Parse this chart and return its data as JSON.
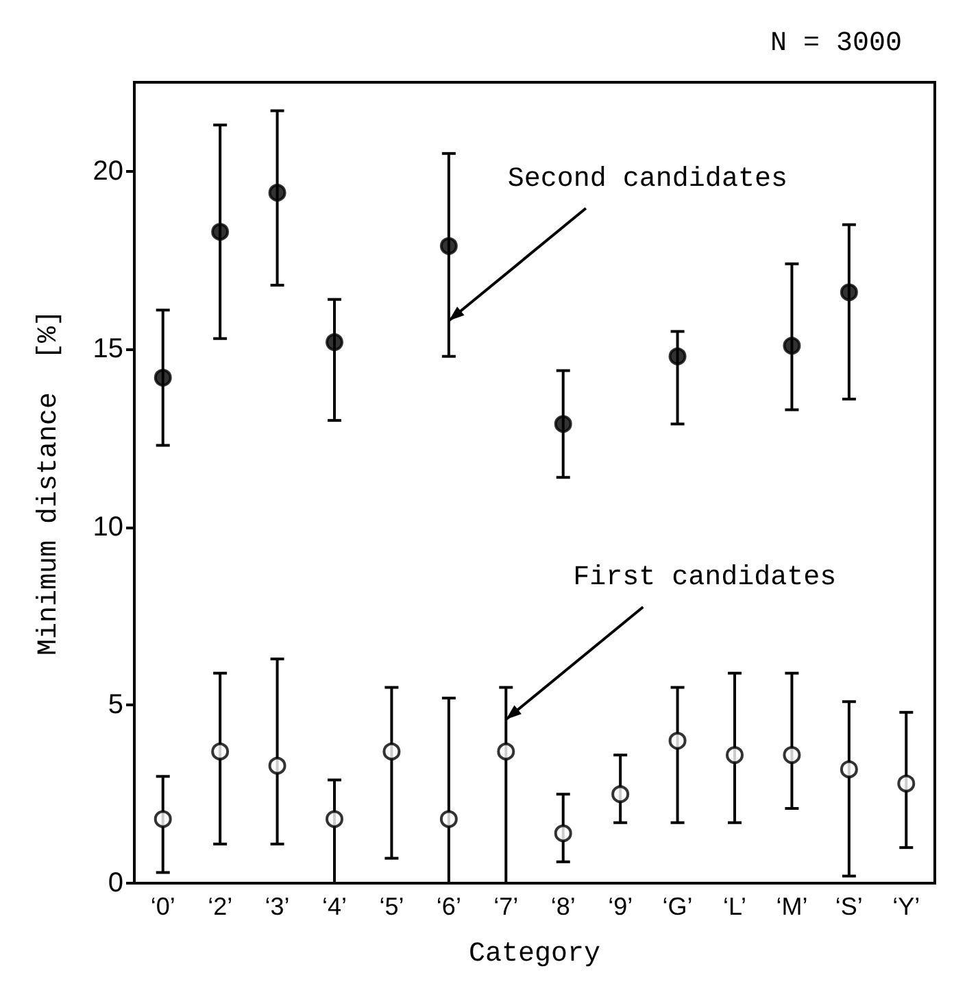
{
  "chart_data": {
    "type": "scatter",
    "xlabel": "Category",
    "ylabel": "Minimum distance  [%]",
    "categories": [
      "‘0’",
      "‘2’",
      "‘3’",
      "‘4’",
      "‘5’",
      "‘6’",
      "‘7’",
      "‘8’",
      "‘9’",
      "‘G’",
      "‘L’",
      "‘M’",
      "‘S’",
      "‘Y’"
    ],
    "ylim": [
      0,
      22.5
    ],
    "yticks": [
      0,
      5,
      10,
      15,
      20
    ],
    "grid": false,
    "marker": "circle",
    "series": [
      {
        "color": "#000000",
        "values": [
          14.2,
          18.3,
          19.4,
          15.2,
          null,
          17.9,
          null,
          12.9,
          null,
          14.8,
          null,
          15.1,
          16.6,
          null
        ],
        "errors": [
          [
            12.3,
            16.1
          ],
          [
            15.3,
            21.3
          ],
          [
            16.8,
            21.7
          ],
          [
            13.0,
            16.4
          ],
          null,
          [
            14.8,
            20.5
          ],
          null,
          [
            11.4,
            14.4
          ],
          null,
          [
            12.9,
            15.5
          ],
          null,
          [
            13.3,
            17.4
          ],
          [
            13.6,
            18.5
          ],
          null
        ]
      },
      {
        "color": "#000000",
        "values": [
          1.8,
          3.7,
          3.3,
          1.8,
          3.7,
          1.8,
          3.7,
          1.4,
          2.5,
          4.0,
          3.6,
          3.6,
          3.2,
          2.8
        ],
        "errors": [
          [
            0.3,
            3.0
          ],
          [
            1.1,
            5.9
          ],
          [
            1.1,
            6.3
          ],
          [
            0,
            2.9
          ],
          [
            0.7,
            5.5
          ],
          [
            0,
            5.2
          ],
          [
            0,
            5.5
          ],
          [
            0.6,
            2.5
          ],
          [
            1.7,
            3.6
          ],
          [
            1.7,
            5.5
          ],
          [
            1.7,
            5.9
          ],
          [
            2.1,
            5.9
          ],
          [
            0.2,
            5.1
          ],
          [
            1.0,
            4.8
          ]
        ]
      }
    ],
    "annotations": [
      "N = 3000",
      {
        "text": "Second candidates",
        "x": "‘6’",
        "y": 15.8
      },
      {
        "text": "First candidates",
        "x": "‘7’",
        "y": 4.6
      }
    ]
  }
}
